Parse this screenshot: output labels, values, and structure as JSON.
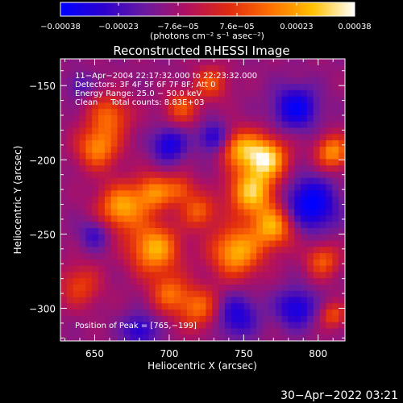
{
  "chart_data": {
    "type": "heatmap",
    "title": "Reconstructed RHESSI Image",
    "xlabel": "Heliocentric X (arcsec)",
    "ylabel": "Heliocentric Y (arcsec)",
    "xlim": [
      627,
      818
    ],
    "ylim": [
      -322,
      -132
    ],
    "x_ticks": [
      650,
      700,
      750,
      800
    ],
    "x_tick_labels": [
      "650",
      "700",
      "750",
      "800"
    ],
    "y_ticks": [
      -150,
      -200,
      -250,
      -300
    ],
    "y_tick_labels": [
      "−150",
      "−200",
      "−250",
      "−300"
    ],
    "colorbar": {
      "range": [
        -0.00038,
        0.00038
      ],
      "ticks": [
        -0.00038,
        -0.00023,
        -7.6e-05,
        7.6e-05,
        0.00023,
        0.00038
      ],
      "tick_labels": [
        "−0.00038",
        "−0.00023",
        "−7.6e−05",
        "7.6e−05",
        "0.00023",
        "0.00038"
      ],
      "unit_label": "(photons cm⁻² s⁻¹ asec⁻²)",
      "colormap_stops": [
        "#0000ff",
        "#2b00d0",
        "#6a1aa0",
        "#b01060",
        "#e02a10",
        "#ff7000",
        "#ffc000",
        "#ffffff"
      ]
    },
    "annotations": [
      "11−Apr−2004 22:17:32.000 to 22:23:32.000",
      "Detectors: 3F 4F 5F 6F 7F 8F; Att 0",
      "Energy Range: 25.0 − 50.0 keV",
      "Clean     Total counts: 8.83E+03"
    ],
    "peak_label": "Position of Peak = [765,−199]",
    "peak": {
      "x": 765,
      "y": -199
    },
    "sources": [
      {
        "x": 765,
        "y": -199,
        "sigma": 10,
        "amp": 1.0
      },
      {
        "x": 747,
        "y": -192,
        "sigma": 9,
        "amp": 0.7
      },
      {
        "x": 755,
        "y": -222,
        "sigma": 11,
        "amp": 0.9
      },
      {
        "x": 770,
        "y": -245,
        "sigma": 10,
        "amp": 0.8
      },
      {
        "x": 745,
        "y": -262,
        "sigma": 12,
        "amp": 0.85
      },
      {
        "x": 720,
        "y": -300,
        "sigma": 10,
        "amp": 0.6
      },
      {
        "x": 700,
        "y": -290,
        "sigma": 9,
        "amp": 0.55
      },
      {
        "x": 690,
        "y": -260,
        "sigma": 12,
        "amp": 0.85
      },
      {
        "x": 668,
        "y": -232,
        "sigma": 11,
        "amp": 0.8
      },
      {
        "x": 690,
        "y": -222,
        "sigma": 9,
        "amp": 0.65
      },
      {
        "x": 652,
        "y": -192,
        "sigma": 10,
        "amp": 0.7
      },
      {
        "x": 660,
        "y": -170,
        "sigma": 10,
        "amp": 0.55
      },
      {
        "x": 708,
        "y": -165,
        "sigma": 8,
        "amp": 0.5
      },
      {
        "x": 728,
        "y": -148,
        "sigma": 8,
        "amp": 0.5
      },
      {
        "x": 810,
        "y": -195,
        "sigma": 8,
        "amp": 0.75
      },
      {
        "x": 803,
        "y": -268,
        "sigma": 8,
        "amp": 0.55
      },
      {
        "x": 640,
        "y": -285,
        "sigma": 10,
        "amp": 0.45
      },
      {
        "x": 708,
        "y": -220,
        "sigma": 7,
        "amp": 0.45
      },
      {
        "x": 720,
        "y": -235,
        "sigma": 8,
        "amp": 0.55
      },
      {
        "x": 810,
        "y": -305,
        "sigma": 6,
        "amp": 0.5
      },
      {
        "x": 650,
        "y": -250,
        "sigma": 7,
        "amp": -0.4
      },
      {
        "x": 700,
        "y": -190,
        "sigma": 8,
        "amp": -0.6
      },
      {
        "x": 730,
        "y": -185,
        "sigma": 7,
        "amp": -0.55
      },
      {
        "x": 785,
        "y": -165,
        "sigma": 10,
        "amp": -0.7
      },
      {
        "x": 795,
        "y": -230,
        "sigma": 12,
        "amp": -0.8
      },
      {
        "x": 745,
        "y": -305,
        "sigma": 10,
        "amp": -0.55
      },
      {
        "x": 680,
        "y": -315,
        "sigma": 8,
        "amp": -0.5
      },
      {
        "x": 785,
        "y": -300,
        "sigma": 9,
        "amp": -0.6
      },
      {
        "x": 640,
        "y": -150,
        "sigma": 6,
        "amp": -0.3
      }
    ]
  },
  "footer": {
    "timestamp": "30−Apr−2022 03:21"
  }
}
